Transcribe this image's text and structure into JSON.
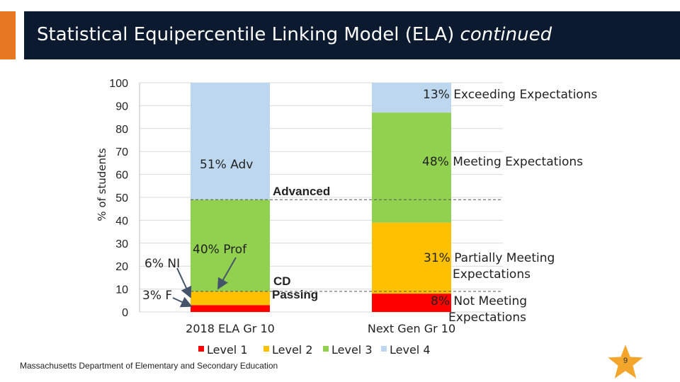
{
  "slide": {
    "title_main": "Statistical Equipercentile Linking Model (ELA) ",
    "title_emph": "continued",
    "footer": "Massachusetts Department of Elementary and Secondary Education",
    "page_number": "9"
  },
  "colors": {
    "accent": "#E87722",
    "title_bg": "#0B1A2E",
    "level1": "#FF0000",
    "level2": "#FFC000",
    "level3": "#92D050",
    "level4": "#BDD7EE",
    "star": "#F4A52B"
  },
  "chart_data": {
    "type": "bar",
    "stacked": true,
    "categories": [
      "2018 ELA Gr 10",
      "Next Gen Gr 10"
    ],
    "ylabel": "% of students",
    "ylim": [
      0,
      100
    ],
    "yticks": [
      0,
      10,
      20,
      30,
      40,
      50,
      60,
      70,
      80,
      90,
      100
    ],
    "series": [
      {
        "name": "Level 1",
        "values": [
          3,
          8
        ]
      },
      {
        "name": "Level 2",
        "values": [
          6,
          31
        ]
      },
      {
        "name": "Level 3",
        "values": [
          40,
          48
        ]
      },
      {
        "name": "Level 4",
        "values": [
          51,
          13
        ]
      }
    ],
    "legend_position": "bottom",
    "cut_lines": [
      {
        "label": "Advanced",
        "value": 49
      },
      {
        "label": "CD Passing",
        "value": 9
      }
    ],
    "annotations_left": [
      "51% Adv",
      "40% Prof",
      "6% NI",
      "3% F"
    ],
    "annotations_right": [
      "13% Exceeding Expectations",
      "48% Meeting Expectations",
      "31% Partially Meeting Expectations",
      "8% Not Meeting Expectations"
    ]
  }
}
